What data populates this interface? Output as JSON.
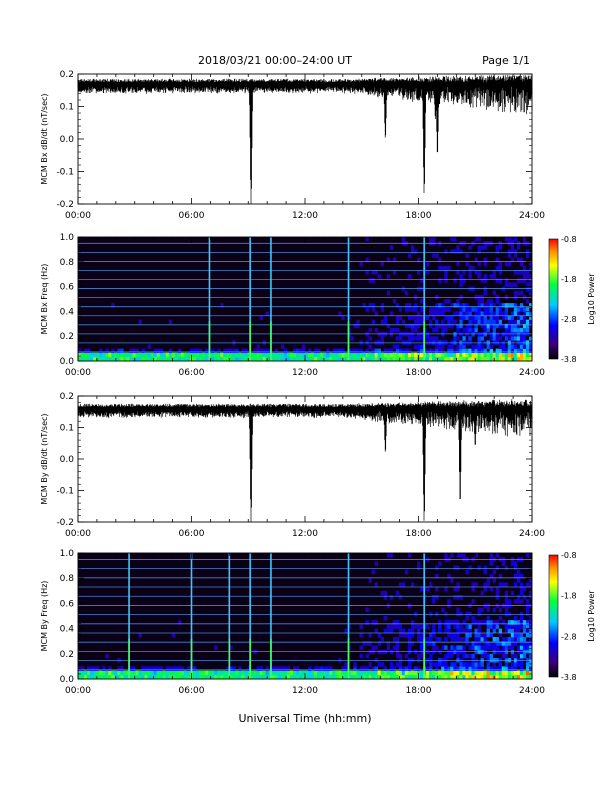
{
  "header": {
    "title": "2018/03/21  00:00–24:00 UT",
    "page": "Page 1/1"
  },
  "footer": {
    "xlabel": "Universal Time (hh:mm)"
  },
  "colors": {
    "trace": "#000000",
    "grid_lines": "#5ab4ff",
    "background": "#ffffff"
  },
  "chart_data": [
    {
      "type": "line",
      "ylabel": "MCM Bx dB/dt (nT/sec)",
      "xlim": [
        0,
        24
      ],
      "ylim": [
        -0.2,
        0.2
      ],
      "x_ticks": [
        "00:00",
        "06:00",
        "12:00",
        "18:00",
        "24:00"
      ],
      "y_ticks": [
        "-0.2",
        "-0.1",
        "0.0",
        "0.1",
        "0.2"
      ],
      "baseline": 0.17,
      "features": [
        {
          "x": 9.15,
          "min": -0.2
        },
        {
          "x": 16.25,
          "min": 0.0
        },
        {
          "x": 18.3,
          "min": -0.17
        },
        {
          "x": 18.9,
          "min": 0.06
        },
        {
          "x": 19.0,
          "min": -0.05
        }
      ]
    },
    {
      "type": "heatmap",
      "ylabel": "MCM Bx Freq (Hz)",
      "xlim": [
        0,
        24
      ],
      "ylim": [
        0,
        1.0
      ],
      "x_ticks": [
        "00:00",
        "06:00",
        "12:00",
        "18:00",
        "24:00"
      ],
      "y_ticks": [
        "0.0",
        "0.2",
        "0.4",
        "0.6",
        "0.8",
        "1.0"
      ],
      "colorbar": {
        "label": "Log10 Power",
        "ticks": [
          "-0.8",
          "-1.8",
          "-2.8",
          "-3.8"
        ],
        "range": [
          -3.8,
          -0.8
        ]
      },
      "bright_times": [
        6.95,
        9.1,
        10.2,
        14.3,
        18.3
      ]
    },
    {
      "type": "line",
      "ylabel": "MCM By dB/dt (nT/sec)",
      "xlim": [
        0,
        24
      ],
      "ylim": [
        -0.2,
        0.2
      ],
      "x_ticks": [
        "00:00",
        "06:00",
        "12:00",
        "18:00",
        "24:00"
      ],
      "y_ticks": [
        "-0.2",
        "-0.1",
        "0.0",
        "0.1",
        "0.2"
      ],
      "baseline": 0.16,
      "features": [
        {
          "x": 9.15,
          "min": -0.2
        },
        {
          "x": 16.25,
          "min": 0.02
        },
        {
          "x": 18.3,
          "min": -0.2
        },
        {
          "x": 20.2,
          "min": -0.14
        },
        {
          "x": 21.0,
          "min": 0.04
        }
      ]
    },
    {
      "type": "heatmap",
      "ylabel": "MCM By Freq (Hz)",
      "xlim": [
        0,
        24
      ],
      "ylim": [
        0,
        1.0
      ],
      "x_ticks": [
        "00:00",
        "06:00",
        "12:00",
        "18:00",
        "24:00"
      ],
      "y_ticks": [
        "0.0",
        "0.2",
        "0.4",
        "0.6",
        "0.8",
        "1.0"
      ],
      "colorbar": {
        "label": "Log10 Power",
        "ticks": [
          "-0.8",
          "-1.8",
          "-2.8",
          "-3.8"
        ],
        "range": [
          -3.8,
          -0.8
        ]
      },
      "bright_times": [
        2.7,
        6.0,
        8.0,
        9.1,
        10.2,
        14.3,
        18.3
      ]
    }
  ]
}
